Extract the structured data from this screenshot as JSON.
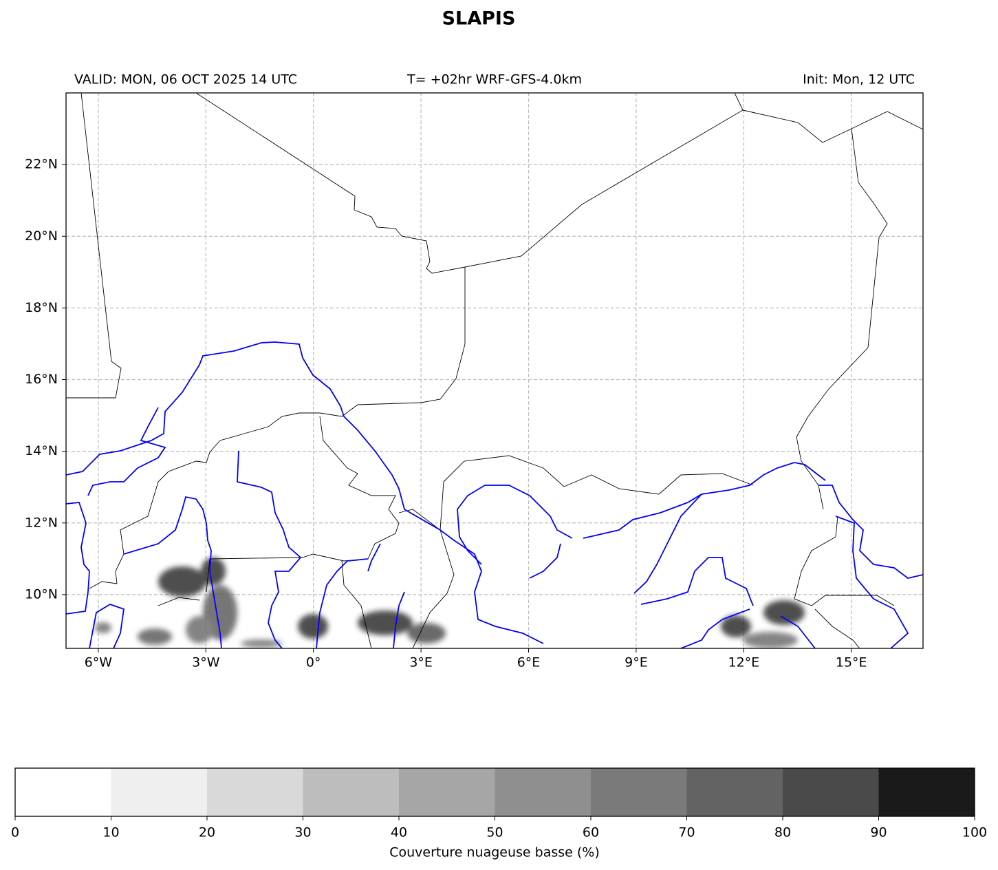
{
  "map": {
    "title": "SLAPIS",
    "valid": "VALID: MON, 06 OCT 2025 14 UTC",
    "run": "T= +02hr WRF-GFS-4.0km",
    "init": "Init: Mon, 12 UTC",
    "lon_range": [
      -6.9,
      17
    ],
    "lat_range": [
      8.5,
      24
    ],
    "lon_ticks": [
      {
        "value": -6,
        "label": "6°W"
      },
      {
        "value": -3,
        "label": "3°W"
      },
      {
        "value": 0,
        "label": "0°"
      },
      {
        "value": 3,
        "label": "3°E"
      },
      {
        "value": 6,
        "label": "6°E"
      },
      {
        "value": 9,
        "label": "9°E"
      },
      {
        "value": 12,
        "label": "12°E"
      },
      {
        "value": 15,
        "label": "15°E"
      }
    ],
    "lat_ticks": [
      {
        "value": 10,
        "label": "10°N"
      },
      {
        "value": 12,
        "label": "12°N"
      },
      {
        "value": 14,
        "label": "14°N"
      },
      {
        "value": 16,
        "label": "16°N"
      },
      {
        "value": 18,
        "label": "18°N"
      },
      {
        "value": 20,
        "label": "20°N"
      },
      {
        "value": 22,
        "label": "22°N"
      }
    ],
    "colorbar": {
      "label": "Couverture nuageuse basse (%)",
      "ticks": [
        0,
        10,
        20,
        30,
        40,
        50,
        60,
        70,
        80,
        90,
        100
      ],
      "colors": [
        "#ffffff",
        "#efefef",
        "#d9d9d9",
        "#bdbdbd",
        "#a6a6a6",
        "#8f8f8f",
        "#7a7a7a",
        "#636363",
        "#4a4a4a",
        "#1a1a1a"
      ]
    }
  }
}
